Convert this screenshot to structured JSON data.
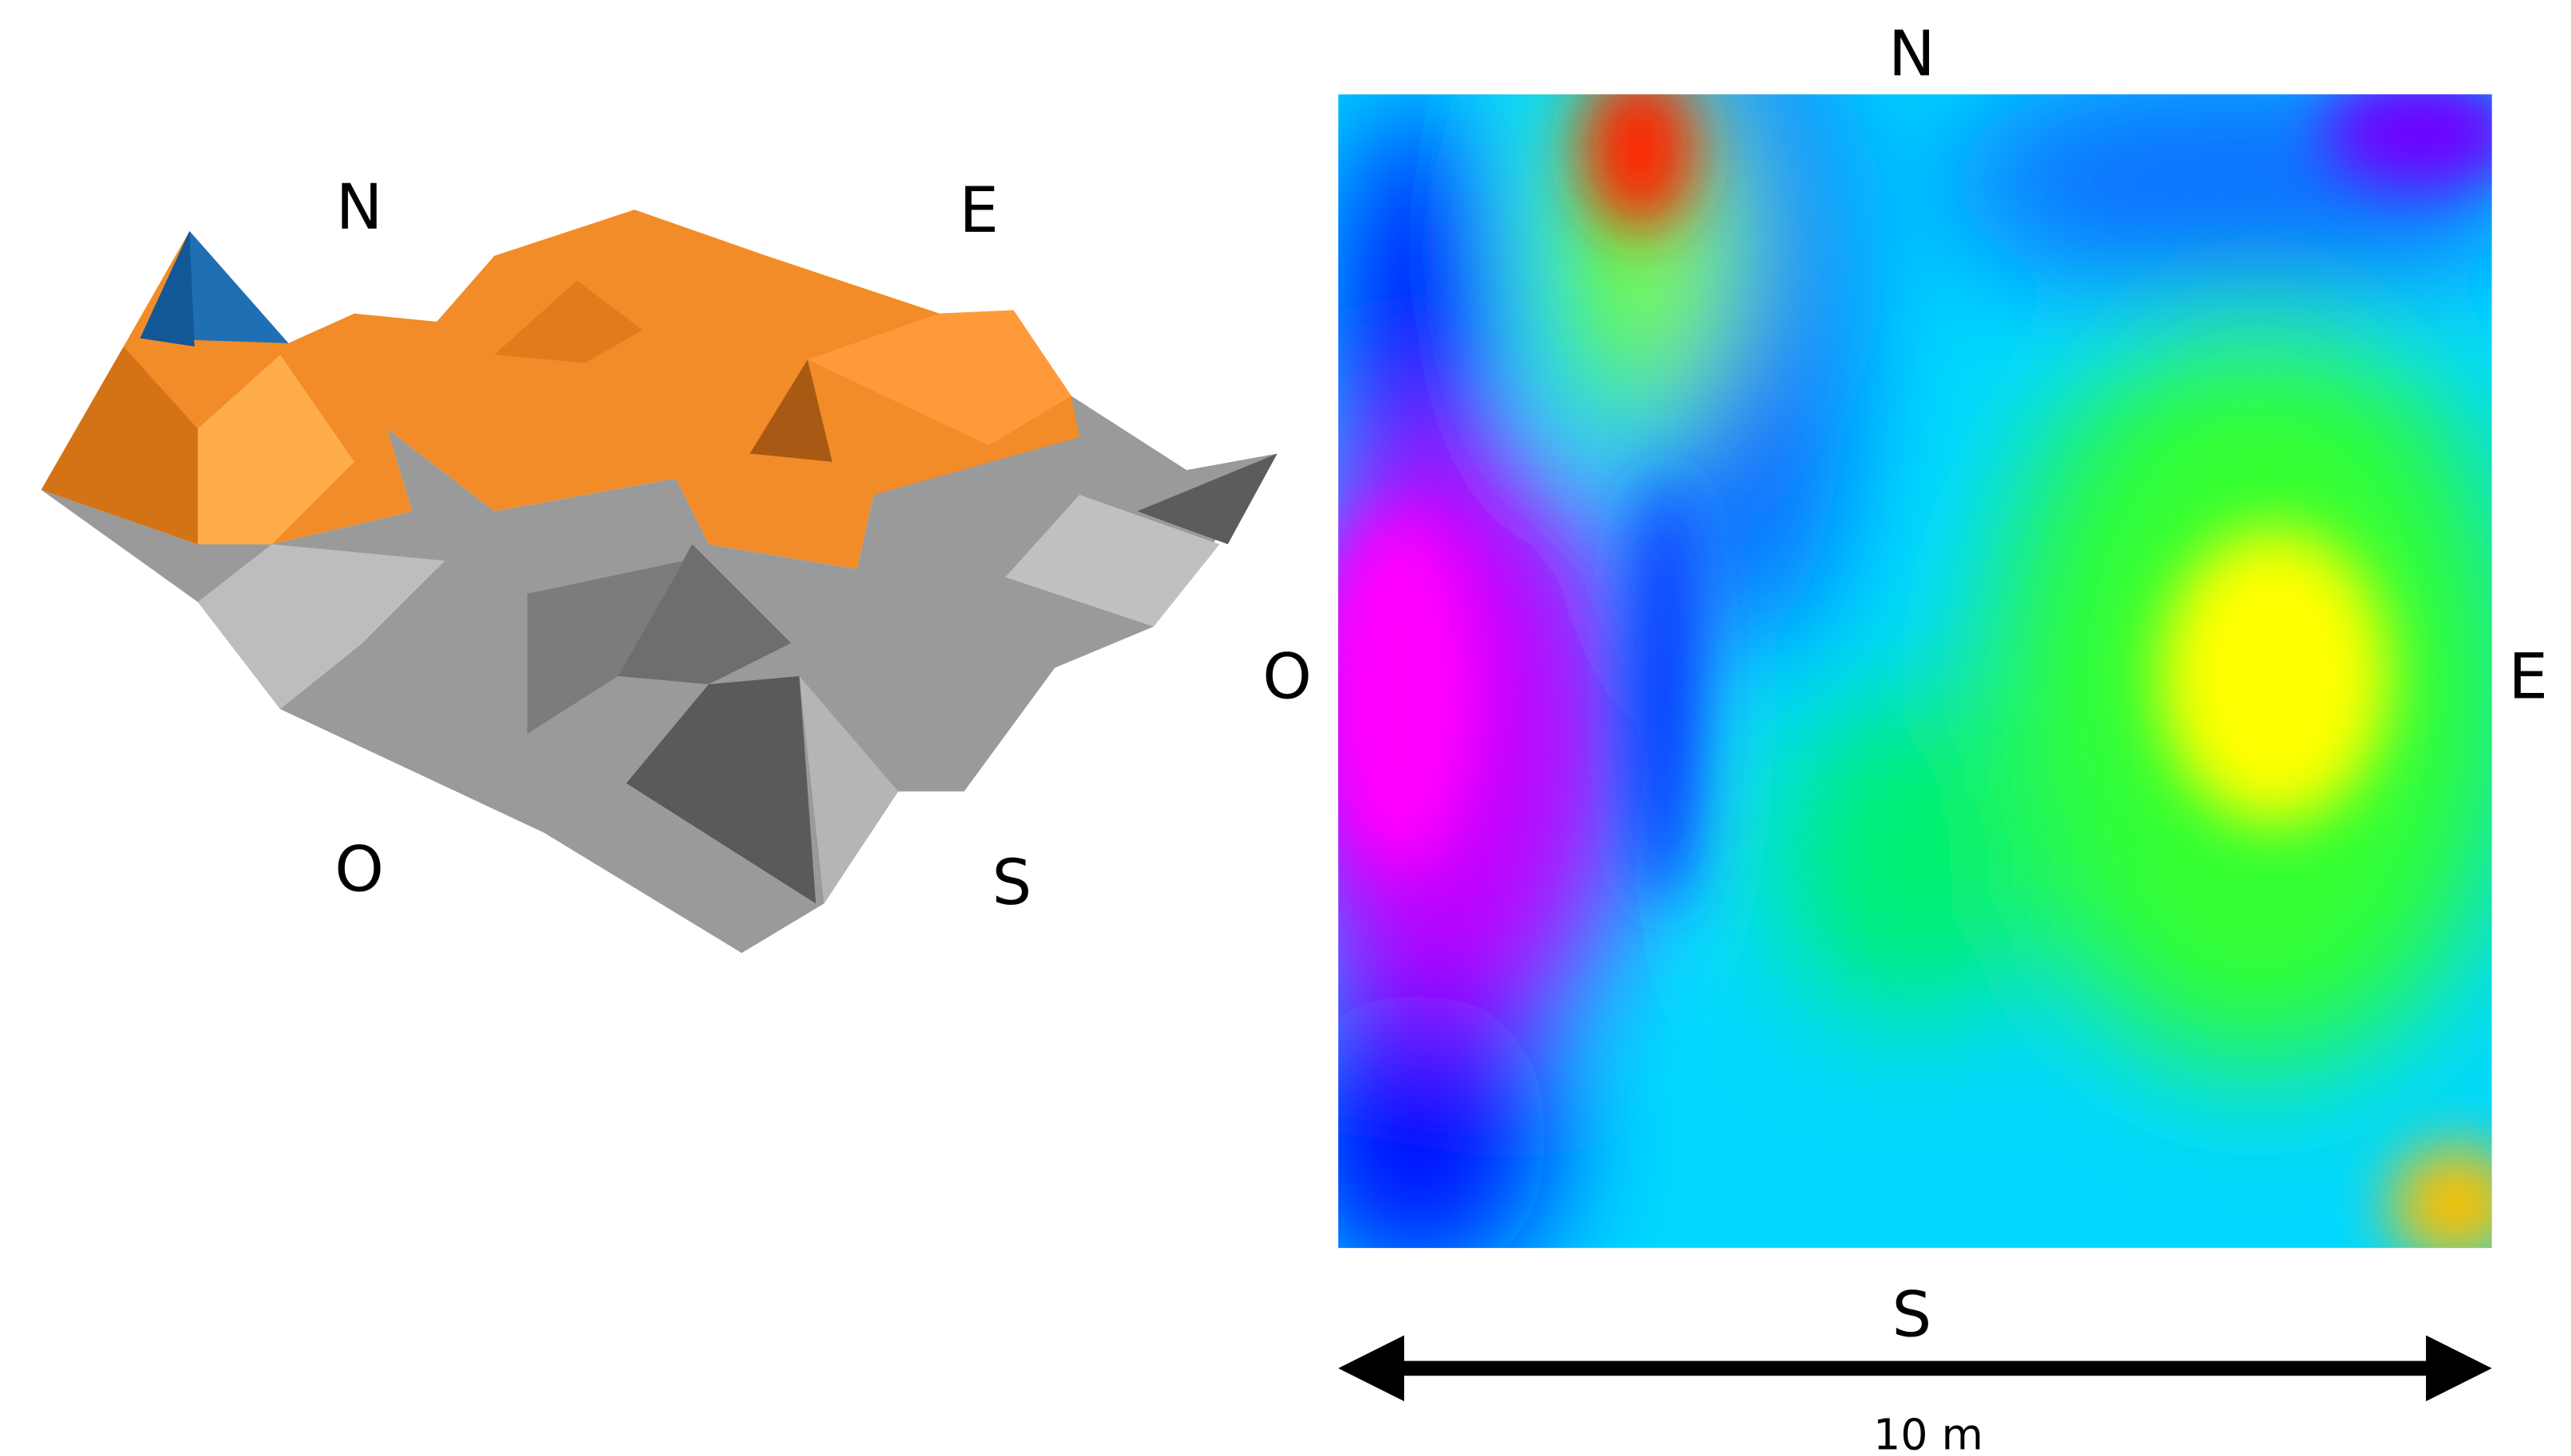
{
  "terrain_view": {
    "north": "N",
    "east": "E",
    "west": "O",
    "south": "S"
  },
  "height_map": {
    "north": "N",
    "east": "E",
    "west": "O",
    "south": "S",
    "scale_label": "10 m"
  }
}
